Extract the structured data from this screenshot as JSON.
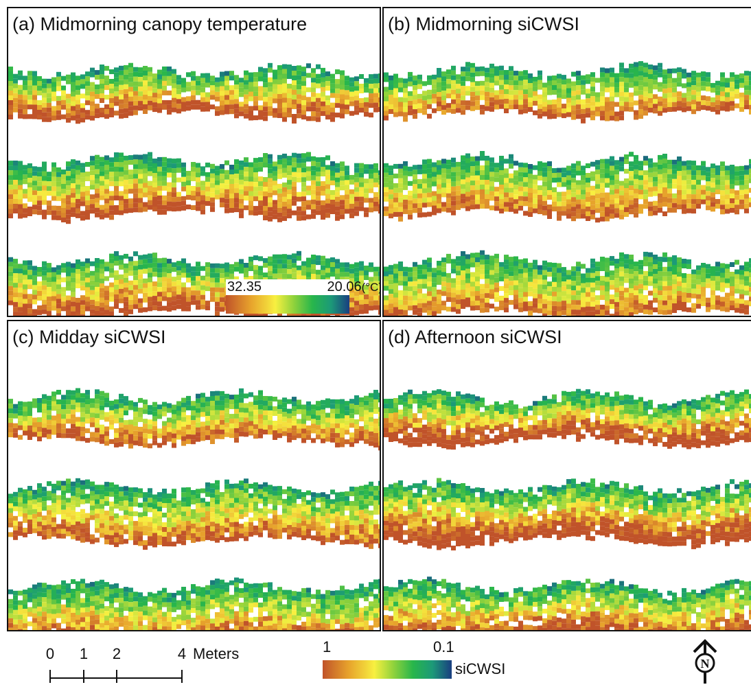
{
  "panels": [
    {
      "id": "a",
      "title": "(a) Midmorning canopy temperature",
      "warm_level": 0.55
    },
    {
      "id": "b",
      "title": "(b) Midmorning siCWSI",
      "warm_level": 0.35
    },
    {
      "id": "c",
      "title": "(c) Midday siCWSI",
      "warm_level": 0.4
    },
    {
      "id": "d",
      "title": "(d) Afternoon siCWSI",
      "warm_level": 0.7
    }
  ],
  "temperature_legend": {
    "high": "32.35",
    "low": "20.06",
    "unit": "(°C)"
  },
  "scale_bar": {
    "ticks": [
      "0",
      "1",
      "2",
      "4"
    ],
    "units": "Meters"
  },
  "sicwsi_legend": {
    "high": "1",
    "low": "0.1",
    "label": "siCWSI"
  },
  "north_arrow": {
    "letter": "N"
  },
  "colors": {
    "ramp": [
      "#c0532a",
      "#e7a22c",
      "#f8f040",
      "#8fd23c",
      "#28b64b",
      "#1c9a78",
      "#1a3e80"
    ],
    "border": "#111111"
  }
}
